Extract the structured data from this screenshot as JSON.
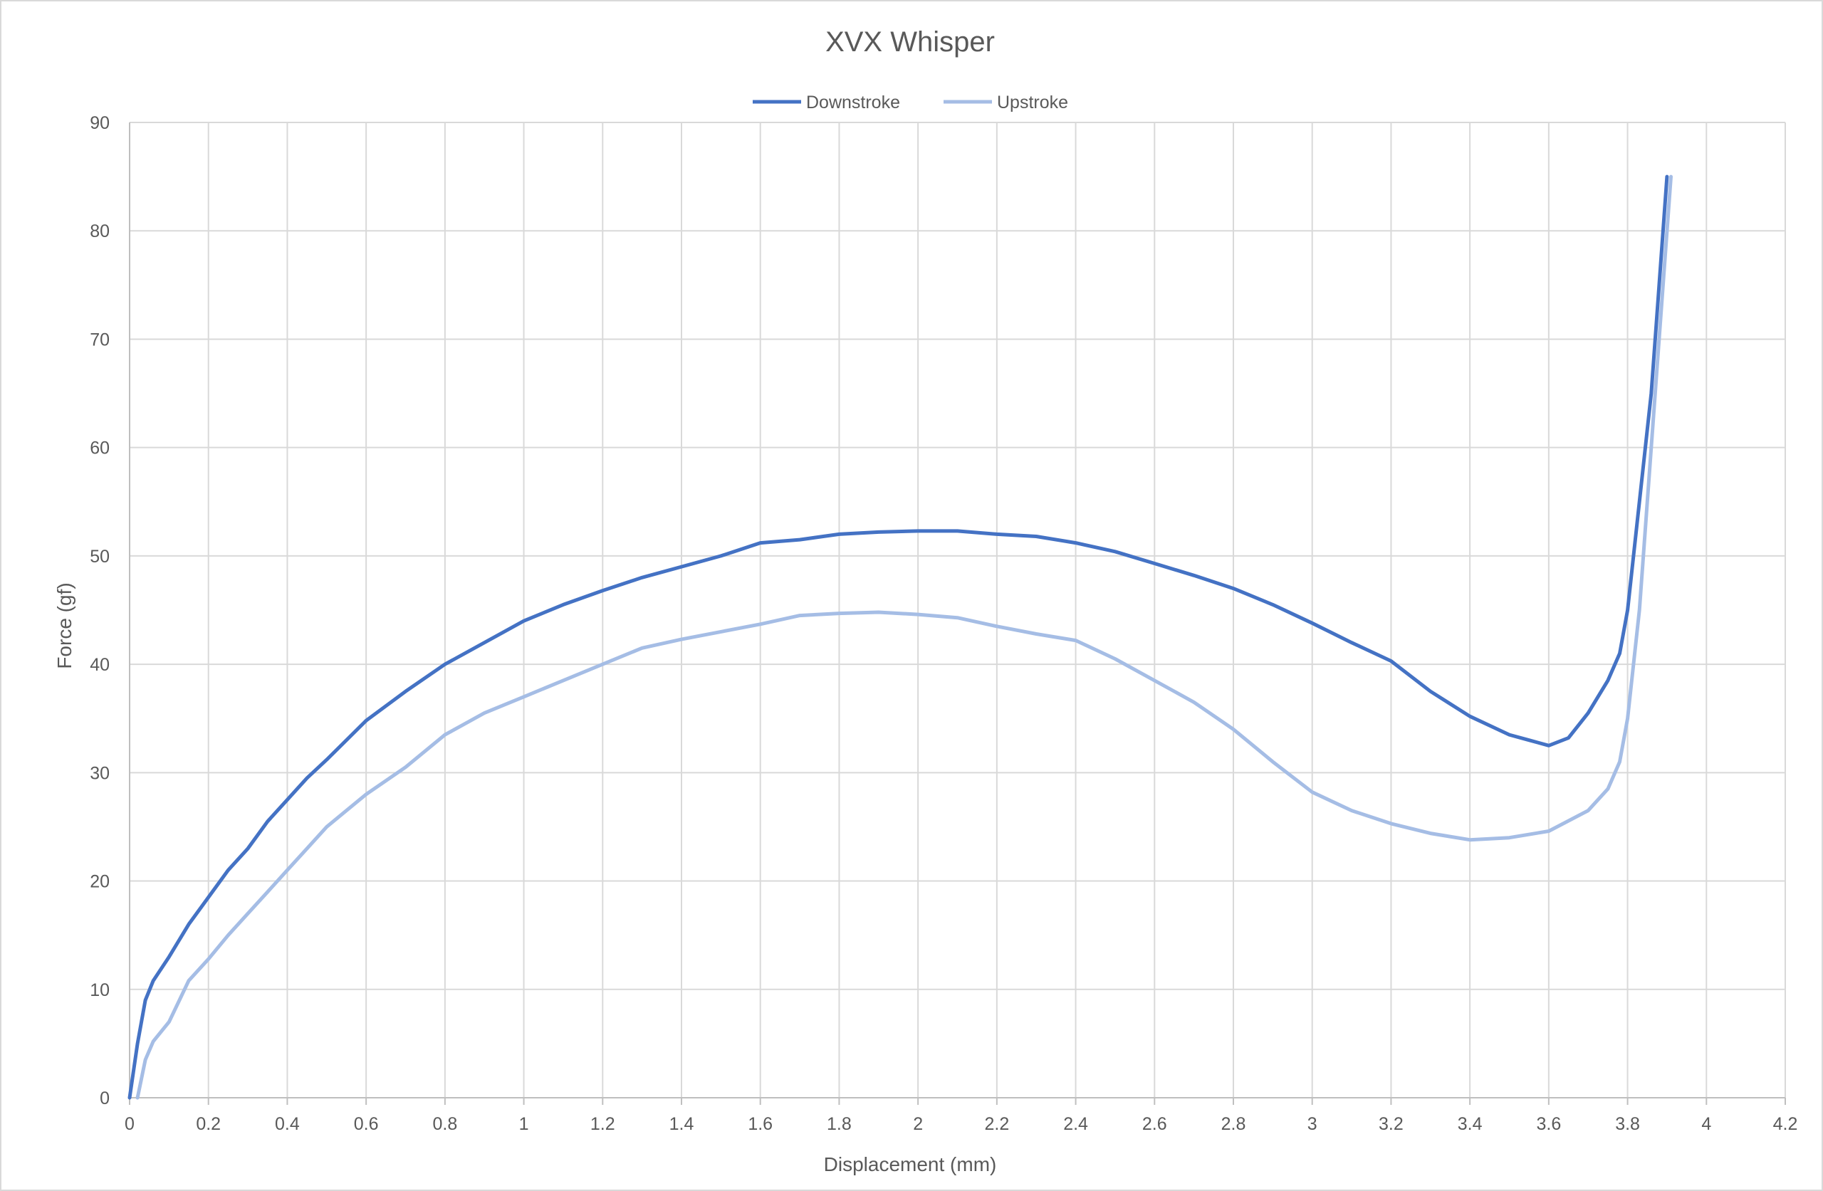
{
  "chart_data": {
    "type": "line",
    "title": "XVX Whisper",
    "xlabel": "Displacement (mm)",
    "ylabel": "Force (gf)",
    "xlim": [
      0,
      4.2
    ],
    "ylim": [
      0,
      90
    ],
    "xticks": [
      0,
      0.2,
      0.4,
      0.6,
      0.8,
      1,
      1.2,
      1.4,
      1.6,
      1.8,
      2,
      2.2,
      2.4,
      2.6,
      2.8,
      3,
      3.2,
      3.4,
      3.6,
      3.8,
      4,
      4.2
    ],
    "xtick_labels": [
      "0",
      "0.2",
      "0.4",
      "0.6",
      "0.8",
      "1",
      "1.2",
      "1.4",
      "1.6",
      "1.8",
      "2",
      "2.2",
      "2.4",
      "2.6",
      "2.8",
      "3",
      "3.2",
      "3.4",
      "3.6",
      "3.8",
      "4",
      "4.2"
    ],
    "yticks": [
      0,
      10,
      20,
      30,
      40,
      50,
      60,
      70,
      80,
      90
    ],
    "ytick_labels": [
      "0",
      "10",
      "20",
      "30",
      "40",
      "50",
      "60",
      "70",
      "80",
      "90"
    ],
    "grid": true,
    "legend_position": "top",
    "series": [
      {
        "name": "Downstroke",
        "color": "#4472c4",
        "x": [
          0,
          0.02,
          0.04,
          0.06,
          0.1,
          0.15,
          0.2,
          0.25,
          0.3,
          0.35,
          0.4,
          0.45,
          0.5,
          0.6,
          0.7,
          0.8,
          0.9,
          1.0,
          1.1,
          1.2,
          1.3,
          1.4,
          1.5,
          1.6,
          1.7,
          1.8,
          1.9,
          2.0,
          2.1,
          2.2,
          2.3,
          2.4,
          2.5,
          2.6,
          2.7,
          2.8,
          2.9,
          3.0,
          3.1,
          3.2,
          3.3,
          3.4,
          3.5,
          3.55,
          3.6,
          3.65,
          3.7,
          3.75,
          3.78,
          3.8,
          3.83,
          3.86,
          3.88,
          3.9
        ],
        "y": [
          0,
          5,
          9,
          10.8,
          13,
          16,
          18.5,
          21,
          23,
          25.5,
          27.5,
          29.5,
          31.2,
          34.8,
          37.5,
          40,
          42,
          44,
          45.5,
          46.8,
          48,
          49,
          50,
          51.2,
          51.5,
          52,
          52.2,
          52.3,
          52.3,
          52,
          51.8,
          51.2,
          50.4,
          49.3,
          48.2,
          47,
          45.5,
          43.8,
          42,
          40.3,
          37.5,
          35.2,
          33.5,
          33,
          32.5,
          33.2,
          35.5,
          38.5,
          41,
          45,
          55,
          65,
          75,
          85
        ]
      },
      {
        "name": "Upstroke",
        "color": "#a5bde5",
        "x": [
          0.02,
          0.04,
          0.06,
          0.1,
          0.15,
          0.2,
          0.25,
          0.3,
          0.35,
          0.4,
          0.45,
          0.5,
          0.6,
          0.7,
          0.8,
          0.9,
          1.0,
          1.1,
          1.2,
          1.3,
          1.4,
          1.5,
          1.6,
          1.7,
          1.8,
          1.9,
          2.0,
          2.1,
          2.2,
          2.3,
          2.4,
          2.5,
          2.6,
          2.7,
          2.8,
          2.9,
          3.0,
          3.1,
          3.2,
          3.3,
          3.4,
          3.5,
          3.6,
          3.7,
          3.75,
          3.78,
          3.8,
          3.83,
          3.86,
          3.89,
          3.91
        ],
        "y": [
          0,
          3.5,
          5.2,
          7,
          10.8,
          12.8,
          15,
          17,
          19,
          21,
          23,
          25,
          28,
          30.5,
          33.5,
          35.5,
          37,
          38.5,
          40,
          41.5,
          42.3,
          43,
          43.7,
          44.5,
          44.7,
          44.8,
          44.6,
          44.3,
          43.5,
          42.8,
          42.2,
          40.5,
          38.5,
          36.5,
          34,
          31,
          28.2,
          26.5,
          25.3,
          24.4,
          23.8,
          24,
          24.6,
          26.5,
          28.5,
          31,
          35,
          45,
          60,
          75,
          85
        ]
      }
    ]
  }
}
